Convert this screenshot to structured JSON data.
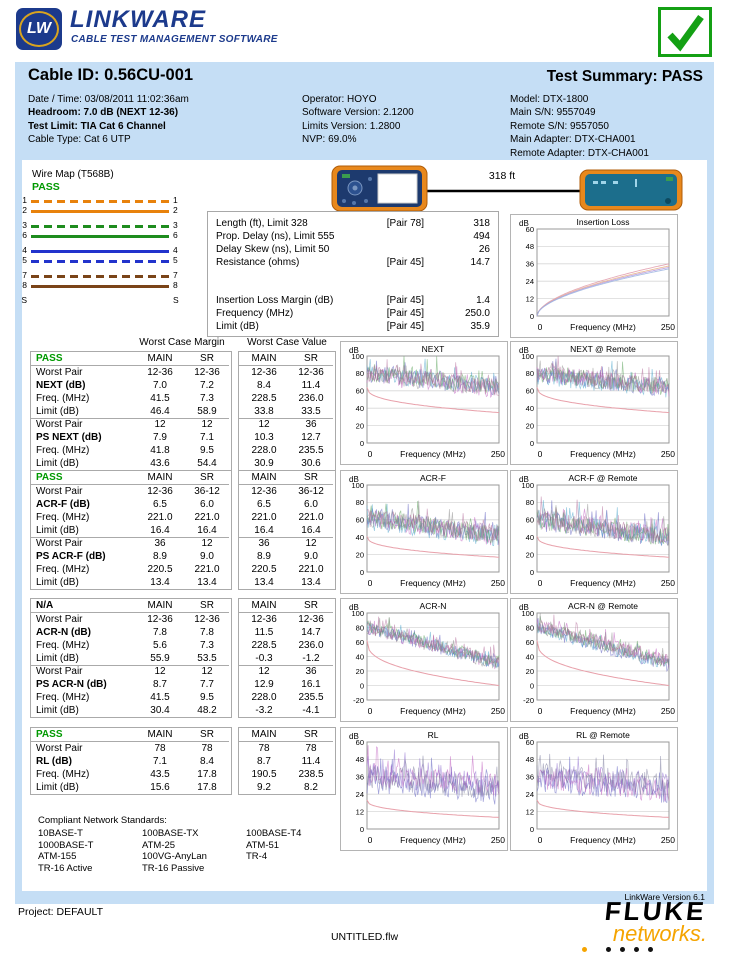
{
  "logo": {
    "badge": "LW",
    "name": "LINKWARE",
    "tagline": "CABLE TEST MANAGEMENT SOFTWARE"
  },
  "summary": {
    "cable_id": "Cable ID: 0.56CU-001",
    "test_summary": "Test Summary: PASS",
    "col1": [
      {
        "text": "Date / Time: 03/08/2011 11:02:36am",
        "bold": false
      },
      {
        "text": "Headroom: 7.0 dB (NEXT 12-36)",
        "bold": true
      },
      {
        "text": "Test Limit: TIA Cat 6 Channel",
        "bold": true
      },
      {
        "text": "Cable Type: Cat 6 UTP",
        "bold": false
      }
    ],
    "col2": [
      {
        "text": "Operator: HOYO",
        "bold": false
      },
      {
        "text": "Software Version: 2.1200",
        "bold": false
      },
      {
        "text": "Limits Version: 1.2800",
        "bold": false
      },
      {
        "text": "NVP: 69.0%",
        "bold": false
      }
    ],
    "col3": [
      {
        "text": "Model: DTX-1800",
        "bold": false
      },
      {
        "text": "Main S/N: 9557049",
        "bold": false
      },
      {
        "text": "Remote S/N: 9557050",
        "bold": false
      },
      {
        "text": "Main Adapter: DTX-CHA001",
        "bold": false
      },
      {
        "text": "Remote Adapter: DTX-CHA001",
        "bold": false
      }
    ]
  },
  "wiremap": {
    "title": "Wire Map (T568B)",
    "status": "PASS",
    "rows": [
      {
        "l": "1",
        "r": "1",
        "color": "#e8820c",
        "dash": true,
        "gap": false
      },
      {
        "l": "2",
        "r": "2",
        "color": "#e8820c",
        "dash": false,
        "gap": false
      },
      {
        "l": "3",
        "r": "3",
        "color": "#1e8c1e",
        "dash": true,
        "gap": true
      },
      {
        "l": "6",
        "r": "6",
        "color": "#1e8c1e",
        "dash": false,
        "gap": false
      },
      {
        "l": "4",
        "r": "4",
        "color": "#2233cc",
        "dash": false,
        "gap": true
      },
      {
        "l": "5",
        "r": "5",
        "color": "#2233cc",
        "dash": true,
        "gap": false
      },
      {
        "l": "7",
        "r": "7",
        "color": "#7a4418",
        "dash": true,
        "gap": true
      },
      {
        "l": "8",
        "r": "8",
        "color": "#7a4418",
        "dash": false,
        "gap": false
      },
      {
        "l": "S",
        "r": "S",
        "color": null,
        "dash": false,
        "gap": true
      }
    ]
  },
  "link": {
    "length_label": "318 ft"
  },
  "measurements": {
    "rows": [
      {
        "label": "Length (ft), Limit 328",
        "pair": "[Pair 78]",
        "value": "318",
        "group": 1
      },
      {
        "label": "Prop. Delay (ns), Limit 555",
        "pair": "",
        "value": "494",
        "group": 1
      },
      {
        "label": "Delay Skew (ns), Limit 50",
        "pair": "",
        "value": "26",
        "group": 1
      },
      {
        "label": "Resistance (ohms)",
        "pair": "[Pair 45]",
        "value": "14.7",
        "group": 1
      },
      {
        "label": "Insertion Loss Margin (dB)",
        "pair": "[Pair 45]",
        "value": "1.4",
        "group": 2
      },
      {
        "label": "Frequency (MHz)",
        "pair": "[Pair 45]",
        "value": "250.0",
        "group": 2
      },
      {
        "label": "Limit (dB)",
        "pair": "[Pair 45]",
        "value": "35.9",
        "group": 2
      }
    ]
  },
  "results": {
    "group_headers": [
      "Worst Case Margin",
      "Worst Case Value"
    ],
    "sub_headers": [
      "MAIN",
      "SR",
      "MAIN",
      "SR"
    ],
    "blocks": [
      {
        "status": "PASS",
        "status_color": "#009900",
        "rows": [
          {
            "label": "Worst Pair",
            "bold": false,
            "vals": [
              "12-36",
              "12-36",
              "12-36",
              "12-36"
            ]
          },
          {
            "label": "NEXT (dB)",
            "bold": true,
            "vals": [
              "7.0",
              "7.2",
              "8.4",
              "11.4"
            ]
          },
          {
            "label": "Freq. (MHz)",
            "bold": false,
            "vals": [
              "41.5",
              "7.3",
              "228.5",
              "236.0"
            ]
          },
          {
            "label": "Limit (dB)",
            "bold": false,
            "vals": [
              "46.4",
              "58.9",
              "33.8",
              "33.5"
            ]
          },
          {
            "label": "Worst Pair",
            "bold": false,
            "vals": [
              "12",
              "12",
              "12",
              "36"
            ]
          },
          {
            "label": "PS NEXT (dB)",
            "bold": true,
            "vals": [
              "7.9",
              "7.1",
              "10.3",
              "12.7"
            ]
          },
          {
            "label": "Freq. (MHz)",
            "bold": false,
            "vals": [
              "41.8",
              "9.5",
              "228.0",
              "235.5"
            ]
          },
          {
            "label": "Limit (dB)",
            "bold": false,
            "vals": [
              "43.6",
              "54.4",
              "30.9",
              "30.6"
            ]
          }
        ]
      },
      {
        "status": "PASS",
        "status_color": "#009900",
        "rows": [
          {
            "label": "Worst Pair",
            "bold": false,
            "vals": [
              "12-36",
              "36-12",
              "12-36",
              "36-12"
            ]
          },
          {
            "label": "ACR-F (dB)",
            "bold": true,
            "vals": [
              "6.5",
              "6.0",
              "6.5",
              "6.0"
            ]
          },
          {
            "label": "Freq. (MHz)",
            "bold": false,
            "vals": [
              "221.0",
              "221.0",
              "221.0",
              "221.0"
            ]
          },
          {
            "label": "Limit (dB)",
            "bold": false,
            "vals": [
              "16.4",
              "16.4",
              "16.4",
              "16.4"
            ]
          },
          {
            "label": "Worst Pair",
            "bold": false,
            "vals": [
              "36",
              "12",
              "36",
              "12"
            ]
          },
          {
            "label": "PS ACR-F (dB)",
            "bold": true,
            "vals": [
              "8.9",
              "9.0",
              "8.9",
              "9.0"
            ]
          },
          {
            "label": "Freq. (MHz)",
            "bold": false,
            "vals": [
              "220.5",
              "221.0",
              "220.5",
              "221.0"
            ]
          },
          {
            "label": "Limit (dB)",
            "bold": false,
            "vals": [
              "13.4",
              "13.4",
              "13.4",
              "13.4"
            ]
          }
        ]
      },
      {
        "status": "N/A",
        "status_color": "#000000",
        "rows": [
          {
            "label": "Worst Pair",
            "bold": false,
            "vals": [
              "12-36",
              "12-36",
              "12-36",
              "12-36"
            ]
          },
          {
            "label": "ACR-N (dB)",
            "bold": true,
            "vals": [
              "7.8",
              "7.8",
              "11.5",
              "14.7"
            ]
          },
          {
            "label": "Freq. (MHz)",
            "bold": false,
            "vals": [
              "5.6",
              "7.3",
              "228.5",
              "236.0"
            ]
          },
          {
            "label": "Limit (dB)",
            "bold": false,
            "vals": [
              "55.9",
              "53.5",
              "-0.3",
              "-1.2"
            ]
          },
          {
            "label": "Worst Pair",
            "bold": false,
            "vals": [
              "12",
              "12",
              "12",
              "36"
            ]
          },
          {
            "label": "PS ACR-N (dB)",
            "bold": true,
            "vals": [
              "8.7",
              "7.7",
              "12.9",
              "16.1"
            ]
          },
          {
            "label": "Freq. (MHz)",
            "bold": false,
            "vals": [
              "41.5",
              "9.5",
              "228.0",
              "235.5"
            ]
          },
          {
            "label": "Limit (dB)",
            "bold": false,
            "vals": [
              "30.4",
              "48.2",
              "-3.2",
              "-4.1"
            ]
          }
        ]
      },
      {
        "status": "PASS",
        "status_color": "#009900",
        "rows": [
          {
            "label": "Worst Pair",
            "bold": false,
            "vals": [
              "78",
              "78",
              "78",
              "78"
            ]
          },
          {
            "label": "RL (dB)",
            "bold": true,
            "vals": [
              "7.1",
              "8.4",
              "8.7",
              "11.4"
            ]
          },
          {
            "label": "Freq. (MHz)",
            "bold": false,
            "vals": [
              "43.5",
              "17.8",
              "190.5",
              "238.5"
            ]
          },
          {
            "label": "Limit (dB)",
            "bold": false,
            "vals": [
              "15.6",
              "17.8",
              "9.2",
              "8.2"
            ]
          }
        ]
      }
    ]
  },
  "standards": {
    "title": "Compliant Network Standards:",
    "columns": [
      [
        "10BASE-T",
        "1000BASE-T",
        "ATM-155",
        "TR-16 Active"
      ],
      [
        "100BASE-TX",
        "ATM-25",
        "100VG-AnyLan",
        "TR-16 Passive"
      ],
      [
        "100BASE-T4",
        "ATM-51",
        "TR-4"
      ]
    ]
  },
  "footer": {
    "project": "Project: DEFAULT",
    "file": "UNTITLED.flw",
    "version": "LinkWare Version  6.1",
    "brand_top": "FLUKE",
    "brand_bottom": "networks."
  },
  "colors": {
    "navy": "#1c3a8c",
    "panel_blue": "#c5def5",
    "pass_green": "#009900",
    "limit_red": "#e8a0aa",
    "fluke_orange": "#f5a400"
  },
  "chart_data": [
    {
      "key": "insertion_loss",
      "type": "line",
      "title": "Insertion Loss",
      "ylabel": "dB",
      "xlabel": "Frequency (MHz)",
      "xlim": [
        0,
        250
      ],
      "xtick_labels": [
        "0",
        "250"
      ],
      "ylim": [
        0,
        60
      ],
      "yticks": [
        0,
        12,
        24,
        36,
        48,
        60
      ],
      "kind": "smooth",
      "curve_ends_dB_at_250MHz": [
        36,
        34.5,
        33.5,
        32.5
      ],
      "colors": [
        "#e09aaa",
        "#e8b088",
        "#b49ade",
        "#9ab4e0"
      ],
      "seed": 11
    },
    {
      "key": "next",
      "type": "line",
      "title": "NEXT",
      "ylabel": "dB",
      "xlabel": "Frequency (MHz)",
      "xlim": [
        0,
        250
      ],
      "xtick_labels": [
        "0",
        "250"
      ],
      "ylim": [
        0,
        100
      ],
      "yticks": [
        0,
        20,
        40,
        60,
        80,
        100
      ],
      "kind": "noisy",
      "band_start_dB": 78,
      "band_end_dB": 62,
      "spike_dB": 20,
      "n_traces": 6,
      "limit_dB": {
        "at_0": 64,
        "at_250": 35
      },
      "limit_color": "#e8a0aa",
      "colors": [
        "#5555bb",
        "#bb55bb",
        "#44a0c8",
        "#55a055",
        "#888888",
        "#b06898"
      ],
      "seed": 1
    },
    {
      "key": "next_remote",
      "type": "line",
      "title": "NEXT @ Remote",
      "ylabel": "dB",
      "xlabel": "Frequency (MHz)",
      "xlim": [
        0,
        250
      ],
      "xtick_labels": [
        "0",
        "250"
      ],
      "ylim": [
        0,
        100
      ],
      "yticks": [
        0,
        20,
        40,
        60,
        80,
        100
      ],
      "kind": "noisy",
      "band_start_dB": 78,
      "band_end_dB": 62,
      "spike_dB": 20,
      "n_traces": 6,
      "limit_dB": {
        "at_0": 64,
        "at_250": 35
      },
      "limit_color": "#e8a0aa",
      "colors": [
        "#5555bb",
        "#bb55bb",
        "#44a0c8",
        "#55a055",
        "#888888",
        "#b06898"
      ],
      "seed": 2
    },
    {
      "key": "acrf",
      "type": "line",
      "title": "ACR-F",
      "ylabel": "dB",
      "xlabel": "Frequency (MHz)",
      "xlim": [
        0,
        250
      ],
      "xtick_labels": [
        "0",
        "250"
      ],
      "ylim": [
        0,
        100
      ],
      "yticks": [
        0,
        20,
        40,
        60,
        80,
        100
      ],
      "kind": "noisy",
      "band_start_dB": 60,
      "band_end_dB": 40,
      "spike_dB": 22,
      "n_traces": 6,
      "limit_dB": {
        "at_0": 41,
        "at_250": 17
      },
      "limit_color": "#e8a0aa",
      "colors": [
        "#5555bb",
        "#bb55bb",
        "#44a0c8",
        "#55a055",
        "#888888",
        "#b06898"
      ],
      "seed": 3
    },
    {
      "key": "acrf_remote",
      "type": "line",
      "title": "ACR-F @ Remote",
      "ylabel": "dB",
      "xlabel": "Frequency (MHz)",
      "xlim": [
        0,
        250
      ],
      "xtick_labels": [
        "0",
        "250"
      ],
      "ylim": [
        0,
        100
      ],
      "yticks": [
        0,
        20,
        40,
        60,
        80,
        100
      ],
      "kind": "noisy",
      "band_start_dB": 60,
      "band_end_dB": 40,
      "spike_dB": 22,
      "n_traces": 6,
      "limit_dB": {
        "at_0": 41,
        "at_250": 17
      },
      "limit_color": "#e8a0aa",
      "colors": [
        "#5555bb",
        "#bb55bb",
        "#44a0c8",
        "#55a055",
        "#888888",
        "#b06898"
      ],
      "seed": 4
    },
    {
      "key": "acrn",
      "type": "line",
      "title": "ACR-N",
      "ylabel": "dB",
      "xlabel": "Frequency (MHz)",
      "xlim": [
        0,
        250
      ],
      "xtick_labels": [
        "0",
        "250"
      ],
      "ylim": [
        -20,
        100
      ],
      "yticks": [
        -20,
        0,
        20,
        40,
        60,
        80,
        100
      ],
      "kind": "noisy",
      "band_start_dB": 80,
      "band_end_dB": 30,
      "spike_dB": 18,
      "n_traces": 6,
      "limit_dB": {
        "at_0": 62,
        "at_250": 0
      },
      "limit_color": "#e8a0aa",
      "colors": [
        "#5555bb",
        "#bb55bb",
        "#44a0c8",
        "#55a055",
        "#888888",
        "#b06898"
      ],
      "seed": 5
    },
    {
      "key": "acrn_remote",
      "type": "line",
      "title": "ACR-N @ Remote",
      "ylabel": "dB",
      "xlabel": "Frequency (MHz)",
      "xlim": [
        0,
        250
      ],
      "xtick_labels": [
        "0",
        "250"
      ],
      "ylim": [
        -20,
        100
      ],
      "yticks": [
        -20,
        0,
        20,
        40,
        60,
        80,
        100
      ],
      "kind": "noisy",
      "band_start_dB": 80,
      "band_end_dB": 30,
      "spike_dB": 18,
      "n_traces": 6,
      "limit_dB": {
        "at_0": 62,
        "at_250": 0
      },
      "limit_color": "#e8a0aa",
      "colors": [
        "#5555bb",
        "#bb55bb",
        "#44a0c8",
        "#55a055",
        "#888888",
        "#b06898"
      ],
      "seed": 6
    },
    {
      "key": "rl",
      "type": "line",
      "title": "RL",
      "ylabel": "dB",
      "xlabel": "Frequency (MHz)",
      "xlim": [
        0,
        250
      ],
      "xtick_labels": [
        "0",
        "250"
      ],
      "ylim": [
        0,
        60
      ],
      "yticks": [
        0,
        12,
        24,
        36,
        48,
        60
      ],
      "kind": "noisy",
      "band_start_dB": 35,
      "band_end_dB": 27,
      "spike_dB": 17,
      "n_traces": 4,
      "limit_dB": {
        "at_0": 20,
        "at_250": 8
      },
      "limit_color": "#e8a0aa",
      "colors": [
        "#5555bb",
        "#bb55bb",
        "#8866cc",
        "#777799"
      ],
      "seed": 7
    },
    {
      "key": "rl_remote",
      "type": "line",
      "title": "RL @ Remote",
      "ylabel": "dB",
      "xlabel": "Frequency (MHz)",
      "xlim": [
        0,
        250
      ],
      "xtick_labels": [
        "0",
        "250"
      ],
      "ylim": [
        0,
        60
      ],
      "yticks": [
        0,
        12,
        24,
        36,
        48,
        60
      ],
      "kind": "noisy",
      "band_start_dB": 35,
      "band_end_dB": 27,
      "spike_dB": 17,
      "n_traces": 4,
      "limit_dB": {
        "at_0": 20,
        "at_250": 8
      },
      "limit_color": "#e8a0aa",
      "colors": [
        "#5555bb",
        "#bb55bb",
        "#8866cc",
        "#777799"
      ],
      "seed": 8
    }
  ]
}
